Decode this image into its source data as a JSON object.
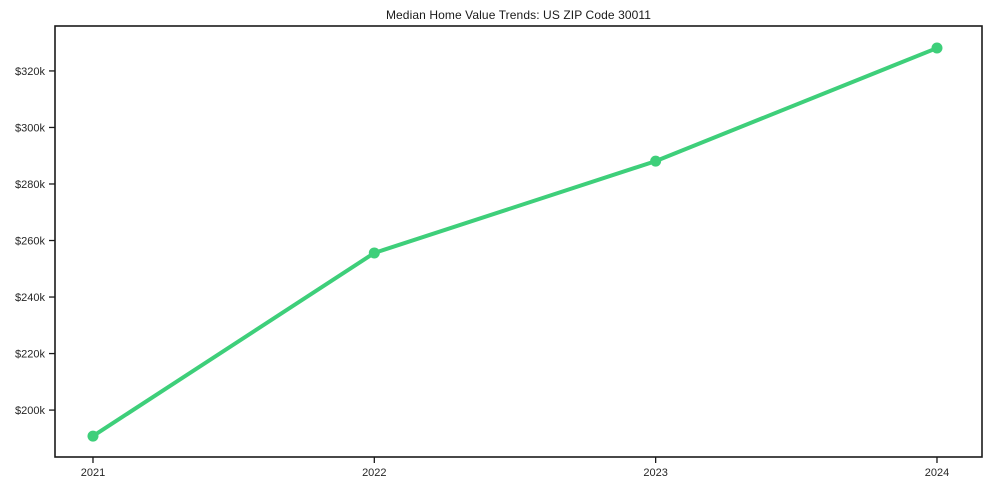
{
  "chart_data": {
    "type": "line",
    "title": "Median Home Value Trends: US ZIP Code 30011",
    "x": [
      2021,
      2022,
      2023,
      2024
    ],
    "x_tick_labels": [
      "2021",
      "2022",
      "2023",
      "2024"
    ],
    "series": [
      {
        "name": "Median Home Value",
        "values": [
          190800,
          255600,
          288100,
          328100
        ]
      }
    ],
    "y_ticks": [
      {
        "value": 200000,
        "label": "$200k"
      },
      {
        "value": 220000,
        "label": "$220k"
      },
      {
        "value": 240000,
        "label": "$240k"
      },
      {
        "value": 260000,
        "label": "$260k"
      },
      {
        "value": 280000,
        "label": "$280k"
      },
      {
        "value": 300000,
        "label": "$300k"
      },
      {
        "value": 320000,
        "label": "$320k"
      }
    ],
    "xlim": [
      2020.865,
      2024.16
    ],
    "ylim": [
      183400,
      335900
    ],
    "line_color": "#3ecf7a",
    "axis_color": "#1a1a1a",
    "grid": false,
    "legend": false
  }
}
